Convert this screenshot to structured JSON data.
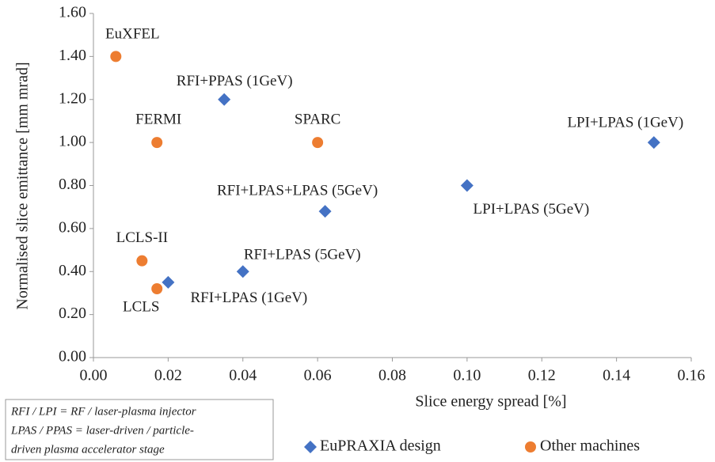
{
  "chart_data": {
    "type": "scatter",
    "x_label": "Slice energy spread [%]",
    "y_label": "Normalised slice emittance [mm mrad]",
    "xlim": [
      0,
      0.16
    ],
    "xticks": [
      {
        "value": 0,
        "label": "0.00"
      },
      {
        "value": 0.02,
        "label": "0.02"
      },
      {
        "value": 0.04,
        "label": "0.04"
      },
      {
        "value": 0.06,
        "label": "0.06"
      },
      {
        "value": 0.08,
        "label": "0.08"
      },
      {
        "value": 0.1,
        "label": "0.10"
      },
      {
        "value": 0.12,
        "label": "0.12"
      },
      {
        "value": 0.14,
        "label": "0.14"
      },
      {
        "value": 0.16,
        "label": "0.16"
      }
    ],
    "ylim": [
      0,
      1.6
    ],
    "yticks": [
      {
        "value": 0,
        "label": "0.00"
      },
      {
        "value": 0.2,
        "label": "0.20"
      },
      {
        "value": 0.4,
        "label": "0.40"
      },
      {
        "value": 0.6,
        "label": "0.60"
      },
      {
        "value": 0.8,
        "label": "0.80"
      },
      {
        "value": 1.0,
        "label": "1.00"
      },
      {
        "value": 1.2,
        "label": "1.20"
      },
      {
        "value": 1.4,
        "label": "1.40"
      },
      {
        "value": 1.6,
        "label": "1.60"
      }
    ],
    "series": [
      {
        "name": "EuPRAXIA design",
        "color": "#4472c4",
        "marker": "diamond",
        "labels": [
          "RFI+PPAS (1GeV)",
          "LPI+LPAS (1GeV)",
          "LPI+LPAS (5GeV)",
          "RFI+LPAS+LPAS (5GeV)",
          "RFI+LPAS (5GeV)",
          "RFI+LPAS (1GeV)"
        ],
        "x": [
          0.035,
          0.15,
          0.1,
          0.062,
          0.04,
          0.02
        ],
        "values": [
          1.2,
          1.0,
          0.8,
          0.68,
          0.4,
          0.35
        ]
      },
      {
        "name": "Other machines",
        "color": "#ed7d31",
        "marker": "circle",
        "labels": [
          "EuXFEL",
          "FERMI",
          "SPARC",
          "LCLS-II",
          "LCLS"
        ],
        "x": [
          0.006,
          0.017,
          0.06,
          0.013,
          0.017
        ],
        "values": [
          1.4,
          1.0,
          1.0,
          0.45,
          0.32
        ]
      }
    ],
    "annotation": [
      "RFI / LPI = RF / laser-plasma injector",
      "LPAS / PPAS = laser-driven / particle-",
      "driven plasma accelerator stage"
    ]
  }
}
